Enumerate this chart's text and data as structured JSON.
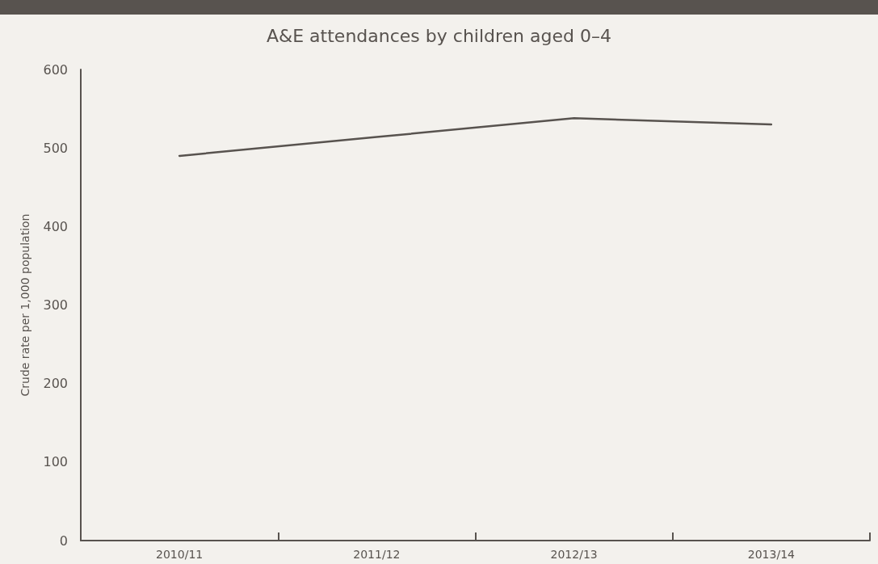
{
  "chart_data": {
    "type": "line",
    "title": "A&E attendances by children aged 0–4",
    "ylabel": "Crude rate per 1,000 population",
    "categories": [
      "2010/11",
      "2011/12",
      "2012/13",
      "2013/14"
    ],
    "series": [
      {
        "color": "#58534f",
        "values": [
          490,
          514,
          538,
          530
        ]
      }
    ],
    "ylim": [
      0,
      600
    ],
    "yticks": [
      0,
      100,
      200,
      300,
      400,
      500,
      600
    ],
    "grid": false,
    "marker": "none",
    "line_style": "solid"
  }
}
